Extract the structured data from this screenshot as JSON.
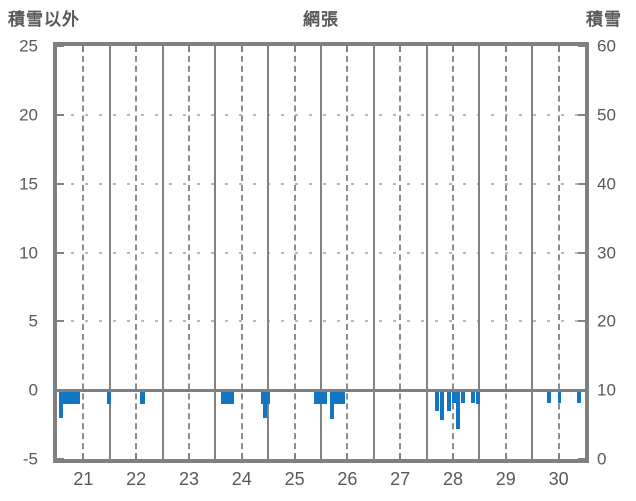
{
  "header": {
    "left_axis_title": "積雪以外",
    "station_title": "網張",
    "right_axis_title": "積雪"
  },
  "colors": {
    "bar": "#1276c3",
    "grid": "#828282",
    "border": "#808080",
    "text": "#595959",
    "background": "#ffffff"
  },
  "chart_data": {
    "type": "bar",
    "title": "網張",
    "left_axis": {
      "title": "積雪以外",
      "ticks": [
        25,
        20,
        15,
        10,
        5,
        0,
        -5
      ],
      "min": -5,
      "max": 25
    },
    "right_axis": {
      "title": "積雪",
      "ticks": [
        60,
        50,
        40,
        30,
        20,
        10,
        0
      ],
      "min": 0,
      "max": 60
    },
    "x_axis": {
      "tick_labels": [
        "21",
        "22",
        "23",
        "24",
        "25",
        "26",
        "27",
        "28",
        "29",
        "30"
      ],
      "min_day": 21,
      "max_day": 31
    },
    "grid": {
      "vertical_solid_at_day_boundaries": true,
      "vertical_dashed_at_day_centers": true,
      "horizontal_dotted_levels": [
        20,
        15,
        10,
        5
      ],
      "zero_line": true
    },
    "bars": [
      {
        "start": 21.03,
        "end": 21.12,
        "value": -2.0
      },
      {
        "start": 21.12,
        "end": 21.44,
        "value": -1.0
      },
      {
        "start": 21.95,
        "end": 22.02,
        "value": -1.0
      },
      {
        "start": 22.58,
        "end": 22.66,
        "value": -1.0
      },
      {
        "start": 24.1,
        "end": 24.36,
        "value": -1.0
      },
      {
        "start": 24.87,
        "end": 24.91,
        "value": -1.0
      },
      {
        "start": 24.91,
        "end": 24.97,
        "value": -2.0
      },
      {
        "start": 24.97,
        "end": 25.0,
        "value": -1.0
      },
      {
        "start": 25.87,
        "end": 26.12,
        "value": -1.0
      },
      {
        "start": 26.17,
        "end": 26.25,
        "value": -2.1
      },
      {
        "start": 26.25,
        "end": 26.46,
        "value": -1.0
      },
      {
        "start": 28.16,
        "end": 28.24,
        "value": -1.5
      },
      {
        "start": 28.26,
        "end": 28.33,
        "value": -2.2
      },
      {
        "start": 28.39,
        "end": 28.46,
        "value": -1.5
      },
      {
        "start": 28.48,
        "end": 28.55,
        "value": -0.9
      },
      {
        "start": 28.55,
        "end": 28.63,
        "value": -2.8
      },
      {
        "start": 28.65,
        "end": 28.73,
        "value": -0.9
      },
      {
        "start": 28.84,
        "end": 28.91,
        "value": -0.9
      },
      {
        "start": 28.93,
        "end": 29.02,
        "value": -1.0
      },
      {
        "start": 30.28,
        "end": 30.36,
        "value": -0.9
      },
      {
        "start": 30.48,
        "end": 30.54,
        "value": -0.9
      },
      {
        "start": 30.85,
        "end": 30.92,
        "value": -0.9
      }
    ]
  }
}
